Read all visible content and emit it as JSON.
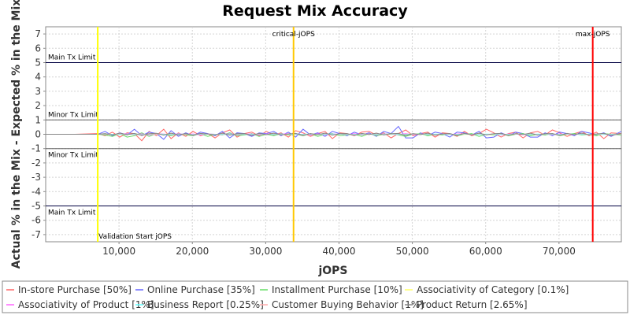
{
  "chart_data": {
    "type": "line",
    "title": "Request Mix Accuracy",
    "xlabel": "jOPS",
    "ylabel": "Actual % in the Mix - Expected % in the Mix",
    "xlim": [
      0,
      78500
    ],
    "ylim": [
      -7.5,
      7.5
    ],
    "x_ticks": [
      10000,
      20000,
      30000,
      40000,
      50000,
      60000,
      70000
    ],
    "x_tick_labels": [
      "10,000",
      "20,000",
      "30,000",
      "40,000",
      "50,000",
      "60,000",
      "70,000"
    ],
    "y_ticks": [
      7,
      6,
      5,
      4,
      3,
      2,
      1,
      0,
      -1,
      -2,
      -3,
      -4,
      -5,
      -6,
      -7
    ],
    "y_tick_labels": [
      "7",
      "6",
      "5",
      "4",
      "3",
      "2",
      "1",
      "0",
      "-1",
      "-2",
      "-3",
      "-4",
      "-5",
      "-6",
      "-7"
    ],
    "grid": true,
    "legend_position": "bottom",
    "limit_lines": [
      {
        "label": "Main Tx Limit",
        "y": 5,
        "color": "#000040"
      },
      {
        "label": "Minor Tx Limit",
        "y": 1,
        "color": "#606060"
      },
      {
        "label": "Minor Tx Limit",
        "y": -1,
        "color": "#606060"
      },
      {
        "label": "Main Tx Limit",
        "y": -5,
        "color": "#000040"
      }
    ],
    "markers": [
      {
        "label": "Validation Start jOPS",
        "x": 7100,
        "color": "#ffff00",
        "label_pos": "bottom"
      },
      {
        "label": "critical-jOPS",
        "x": 33800,
        "color": "#ffc800",
        "label_pos": "top"
      },
      {
        "label": "max-jOPS",
        "x": 74600,
        "color": "#ff0000",
        "label_pos": "top"
      }
    ],
    "x": [
      0,
      4000,
      7100,
      8100,
      9100,
      10100,
      11100,
      12100,
      13100,
      14100,
      15100,
      16100,
      17100,
      18100,
      19100,
      20100,
      21100,
      22100,
      23100,
      24100,
      25100,
      26100,
      27100,
      28100,
      29100,
      30100,
      31100,
      32100,
      33100,
      34100,
      35100,
      36100,
      37100,
      38100,
      39100,
      40100,
      41100,
      42100,
      43100,
      44100,
      45100,
      46100,
      47100,
      48100,
      49100,
      50100,
      51100,
      52100,
      53100,
      54100,
      55100,
      56100,
      57100,
      58100,
      59100,
      60100,
      61100,
      62100,
      63100,
      64100,
      65100,
      66100,
      67100,
      68100,
      69100,
      70100,
      71100,
      72100,
      73100,
      74100,
      75100,
      76100,
      77100,
      78500
    ],
    "series": [
      {
        "name": "In-store Purchase [50%]",
        "color": "#ff6666",
        "values": [
          0.0,
          0.0,
          0.05,
          -0.1,
          0.15,
          -0.2,
          0.1,
          0.05,
          -0.45,
          0.2,
          -0.1,
          0.35,
          -0.3,
          0.1,
          -0.15,
          0.2,
          -0.1,
          0.05,
          -0.25,
          0.1,
          0.3,
          -0.2,
          0.05,
          0.15,
          -0.1,
          0.2,
          -0.05,
          0.1,
          -0.2,
          0.25,
          0.1,
          -0.15,
          0.05,
          0.2,
          -0.3,
          0.1,
          0.05,
          -0.1,
          0.15,
          0.2,
          -0.05,
          0.1,
          -0.25,
          0.05,
          0.3,
          -0.1,
          0.05,
          0.15,
          -0.2,
          0.1,
          0.05,
          -0.15,
          0.2,
          -0.1,
          0.05,
          0.35,
          0.1,
          -0.2,
          0.05,
          0.15,
          -0.25,
          0.1,
          0.2,
          -0.05,
          0.3,
          0.1,
          -0.15,
          0.05,
          0.2,
          -0.1,
          0.15,
          -0.3,
          0.1,
          0.05
        ]
      },
      {
        "name": "Online Purchase [35%]",
        "color": "#6666ff",
        "values": [
          0.0,
          0.0,
          0.0,
          0.2,
          -0.1,
          0.1,
          -0.05,
          0.35,
          -0.1,
          0.15,
          0.05,
          -0.35,
          0.25,
          -0.15,
          0.1,
          -0.1,
          0.15,
          0.05,
          -0.1,
          0.2,
          -0.25,
          0.1,
          0.05,
          -0.15,
          0.1,
          0.05,
          0.2,
          -0.1,
          0.15,
          -0.2,
          0.35,
          -0.05,
          0.1,
          -0.15,
          0.2,
          0.05,
          -0.1,
          0.15,
          -0.05,
          0.1,
          -0.15,
          0.2,
          0.05,
          0.55,
          -0.25,
          -0.25,
          0.1,
          -0.1,
          0.15,
          0.05,
          -0.2,
          0.15,
          0.1,
          -0.05,
          0.2,
          -0.25,
          -0.2,
          0.1,
          -0.1,
          0.15,
          0.05,
          -0.2,
          -0.2,
          0.1,
          -0.1,
          0.15,
          0.05,
          -0.1,
          0.2,
          0.1,
          -0.05,
          0.1,
          -0.15,
          0.2
        ]
      },
      {
        "name": "Installment Purchase [10%]",
        "color": "#66dd66",
        "values": [
          0.0,
          0.0,
          0.0,
          -0.05,
          -0.15,
          0.05,
          -0.2,
          -0.1,
          0.1,
          -0.15,
          0.05,
          0.0,
          -0.1,
          0.05,
          -0.05,
          -0.1,
          0.05,
          -0.15,
          0.0,
          -0.05,
          0.1,
          -0.1,
          -0.05,
          0.05,
          -0.15,
          0.0,
          -0.1,
          0.05,
          -0.05,
          0.0,
          -0.1,
          0.05,
          -0.15,
          0.0,
          0.05,
          -0.1,
          -0.05,
          0.0,
          -0.15,
          0.05,
          -0.1,
          0.0,
          0.05,
          -0.05,
          -0.15,
          0.0,
          0.05,
          -0.1,
          0.0,
          -0.05,
          0.05,
          -0.1,
          0.0,
          0.05,
          -0.15,
          0.0,
          -0.05,
          0.05,
          -0.1,
          0.0,
          0.05,
          -0.1,
          0.0,
          -0.05,
          0.05,
          -0.1,
          0.0,
          0.05,
          -0.05,
          0.0,
          -0.1,
          0.05,
          0.0,
          -0.05
        ]
      },
      {
        "name": "Associativity of Category [0.1%]",
        "color": "#ffff66",
        "values": [
          0.0,
          0.0,
          0.0,
          0.01,
          0.0,
          -0.01,
          0.0,
          0.01,
          0.0,
          -0.01,
          0.0,
          0.0,
          0.01,
          0.0,
          -0.01,
          0.0,
          0.0,
          0.01,
          0.0,
          -0.01,
          0.0,
          0.01,
          0.0,
          0.0,
          -0.01,
          0.0,
          0.01,
          0.0,
          -0.01,
          0.0,
          0.0,
          0.01,
          0.0,
          -0.01,
          0.0,
          0.01,
          0.0,
          0.0,
          -0.01,
          0.0,
          0.01,
          0.0,
          -0.01,
          0.0,
          0.0,
          0.01,
          0.0,
          -0.01,
          0.0,
          0.01,
          0.0,
          0.0,
          -0.01,
          0.0,
          0.01,
          0.0,
          -0.01,
          0.0,
          0.0,
          0.01,
          0.0,
          -0.01,
          0.0,
          0.01,
          0.0,
          0.0,
          -0.01,
          0.0,
          0.01,
          0.0,
          -0.01,
          0.0,
          0.0,
          0.01
        ]
      },
      {
        "name": "Associativity of Product [1%]",
        "color": "#ff66ff",
        "values": [
          0.0,
          0.0,
          0.0,
          0.02,
          -0.03,
          0.01,
          0.04,
          -0.02,
          0.03,
          -0.04,
          0.02,
          0.01,
          -0.03,
          0.04,
          -0.01,
          0.02,
          -0.04,
          0.03,
          0.0,
          -0.02,
          0.04,
          -0.03,
          0.01,
          0.02,
          -0.04,
          0.03,
          -0.01,
          0.02,
          0.04,
          -0.03,
          0.01,
          -0.02,
          0.03,
          -0.04,
          0.02,
          0.01,
          -0.03,
          0.04,
          -0.01,
          0.02,
          -0.04,
          0.03,
          0.0,
          -0.02,
          0.04,
          -0.03,
          0.01,
          0.02,
          -0.04,
          0.03,
          -0.01,
          0.02,
          0.04,
          -0.03,
          0.01,
          -0.02,
          0.03,
          -0.04,
          0.02,
          0.01,
          -0.03,
          0.04,
          -0.01,
          0.02,
          -0.04,
          0.03,
          0.0,
          -0.02,
          0.04,
          -0.03,
          0.01,
          0.02,
          -0.04,
          0.03
        ]
      },
      {
        "name": "Business Report [0.25%]",
        "color": "#66ffff",
        "values": [
          0.0,
          0.0,
          0.0,
          0.01,
          0.0,
          -0.01,
          0.01,
          0.0,
          -0.01,
          0.0,
          0.01,
          0.0,
          -0.01,
          0.01,
          0.0,
          -0.01,
          0.0,
          0.01,
          0.0,
          -0.01,
          0.01,
          0.0,
          -0.01,
          0.0,
          0.01,
          0.0,
          -0.01,
          0.01,
          0.0,
          -0.01,
          0.0,
          0.01,
          0.0,
          -0.01,
          0.01,
          0.0,
          -0.01,
          0.0,
          0.01,
          0.0,
          -0.01,
          0.01,
          0.0,
          -0.01,
          0.0,
          0.01,
          0.0,
          -0.01,
          0.01,
          0.0,
          -0.01,
          0.0,
          0.01,
          0.0,
          -0.01,
          0.01,
          0.0,
          -0.01,
          0.0,
          0.01,
          0.0,
          -0.01,
          0.01,
          0.0,
          -0.01,
          0.0,
          0.01,
          0.0,
          -0.01,
          0.01,
          0.0,
          -0.01,
          0.0,
          0.01
        ]
      },
      {
        "name": "Customer Buying Behavior [1%]",
        "color": "#ffaaaa",
        "values": [
          0.0,
          0.0,
          0.0,
          0.03,
          -0.04,
          0.05,
          -0.02,
          0.04,
          -0.05,
          0.02,
          0.03,
          -0.04,
          0.05,
          -0.03,
          0.02,
          -0.05,
          0.04,
          0.01,
          -0.03,
          0.05,
          -0.04,
          0.02,
          0.03,
          -0.05,
          0.04,
          -0.02,
          0.05,
          -0.03,
          0.01,
          0.04,
          -0.05,
          0.03,
          -0.02,
          0.05,
          -0.04,
          0.02,
          0.03,
          -0.05,
          0.04,
          -0.01,
          0.05,
          -0.03,
          0.02,
          0.04,
          -0.05,
          0.03,
          -0.02,
          0.05,
          -0.04,
          0.01,
          0.03,
          -0.05,
          0.04,
          -0.02,
          0.05,
          -0.03,
          0.02,
          0.04,
          -0.05,
          0.03,
          -0.01,
          0.05,
          -0.04,
          0.02,
          0.03,
          -0.05,
          0.04,
          -0.02,
          0.05,
          -0.03,
          0.01,
          0.04,
          -0.05,
          0.03
        ]
      },
      {
        "name": "Product Return [2.65%]",
        "color": "#888888",
        "values": [
          0.0,
          0.0,
          0.0,
          0.05,
          -0.05,
          0.08,
          -0.03,
          0.06,
          -0.08,
          0.04,
          0.07,
          -0.06,
          0.08,
          -0.04,
          0.05,
          -0.07,
          0.06,
          0.02,
          -0.05,
          0.08,
          -0.06,
          0.04,
          0.05,
          -0.08,
          0.06,
          -0.03,
          0.08,
          -0.05,
          0.02,
          0.06,
          -0.08,
          0.05,
          -0.03,
          0.08,
          -0.06,
          0.04,
          0.05,
          -0.08,
          0.06,
          -0.02,
          0.08,
          -0.05,
          0.04,
          0.06,
          -0.08,
          0.05,
          -0.03,
          0.08,
          -0.06,
          0.02,
          0.05,
          -0.08,
          0.06,
          -0.04,
          0.08,
          -0.05,
          0.04,
          0.06,
          -0.08,
          0.05,
          -0.02,
          0.08,
          -0.06,
          0.04,
          0.05,
          -0.08,
          0.06,
          -0.03,
          0.08,
          -0.05,
          0.02,
          0.06,
          -0.08,
          0.05
        ]
      }
    ]
  }
}
